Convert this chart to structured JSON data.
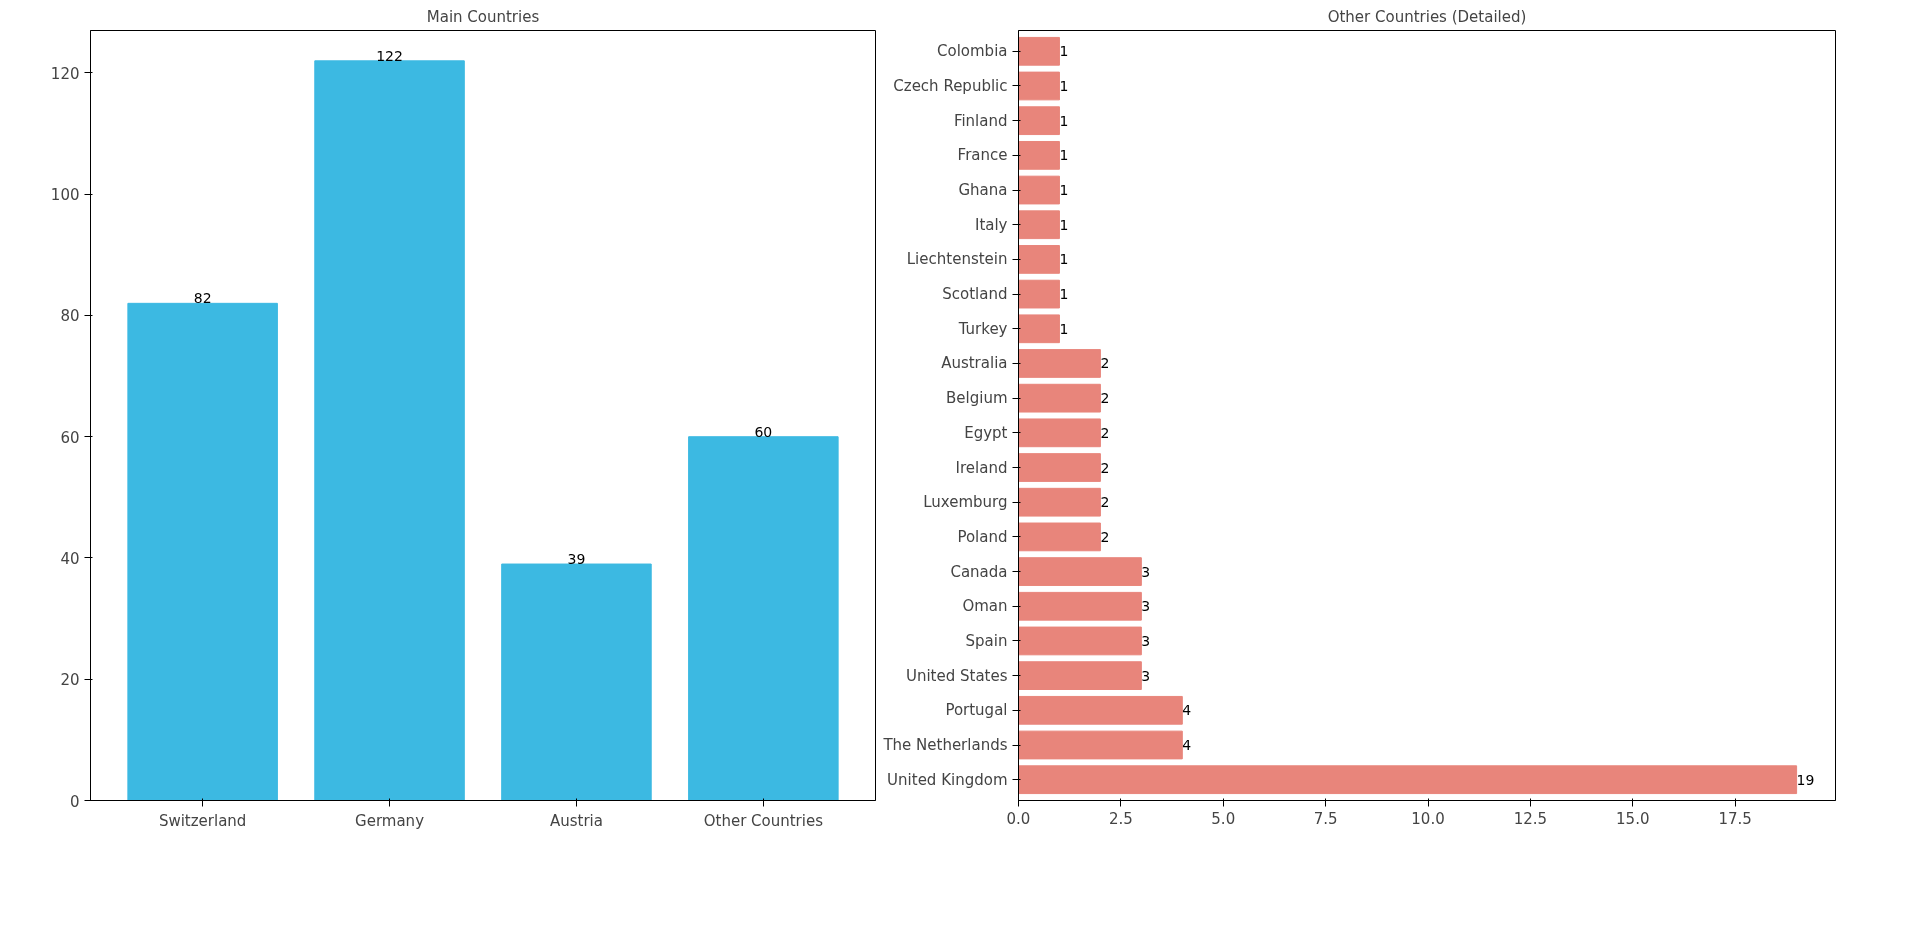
{
  "chart_data": [
    {
      "type": "bar",
      "title": "Main Countries",
      "categories": [
        "Switzerland",
        "Germany",
        "Austria",
        "Other Countries"
      ],
      "values": [
        82,
        122,
        39,
        60
      ],
      "color": "#3cb9e2",
      "ylim": [
        0,
        127
      ],
      "yticks": [
        0,
        20,
        40,
        60,
        80,
        100,
        120
      ],
      "grid": false,
      "data_labels": true
    },
    {
      "type": "bar",
      "orientation": "horizontal",
      "title": "Other Countries (Detailed)",
      "categories": [
        "Colombia",
        "Czech Republic",
        "Finland",
        "France",
        "Ghana",
        "Italy",
        "Liechtenstein",
        "Scotland",
        "Turkey",
        "Australia",
        "Belgium",
        "Egypt",
        "Ireland",
        "Luxemburg",
        "Poland",
        "Canada",
        "Oman",
        "Spain",
        "United States",
        "Portugal",
        "The Netherlands",
        "United Kingdom"
      ],
      "values": [
        1,
        1,
        1,
        1,
        1,
        1,
        1,
        1,
        1,
        2,
        2,
        2,
        2,
        2,
        2,
        3,
        3,
        3,
        3,
        4,
        4,
        19
      ],
      "color": "#e8857b",
      "xlim": [
        0,
        19.95
      ],
      "xticks": [
        {
          "value": 0,
          "label": "0.0"
        },
        {
          "value": 2.5,
          "label": "2.5"
        },
        {
          "value": 5,
          "label": "5.0"
        },
        {
          "value": 7.5,
          "label": "7.5"
        },
        {
          "value": 10,
          "label": "10.0"
        },
        {
          "value": 12.5,
          "label": "12.5"
        },
        {
          "value": 15,
          "label": "15.0"
        },
        {
          "value": 17.5,
          "label": "17.5"
        }
      ],
      "grid": false,
      "data_labels": true
    }
  ]
}
